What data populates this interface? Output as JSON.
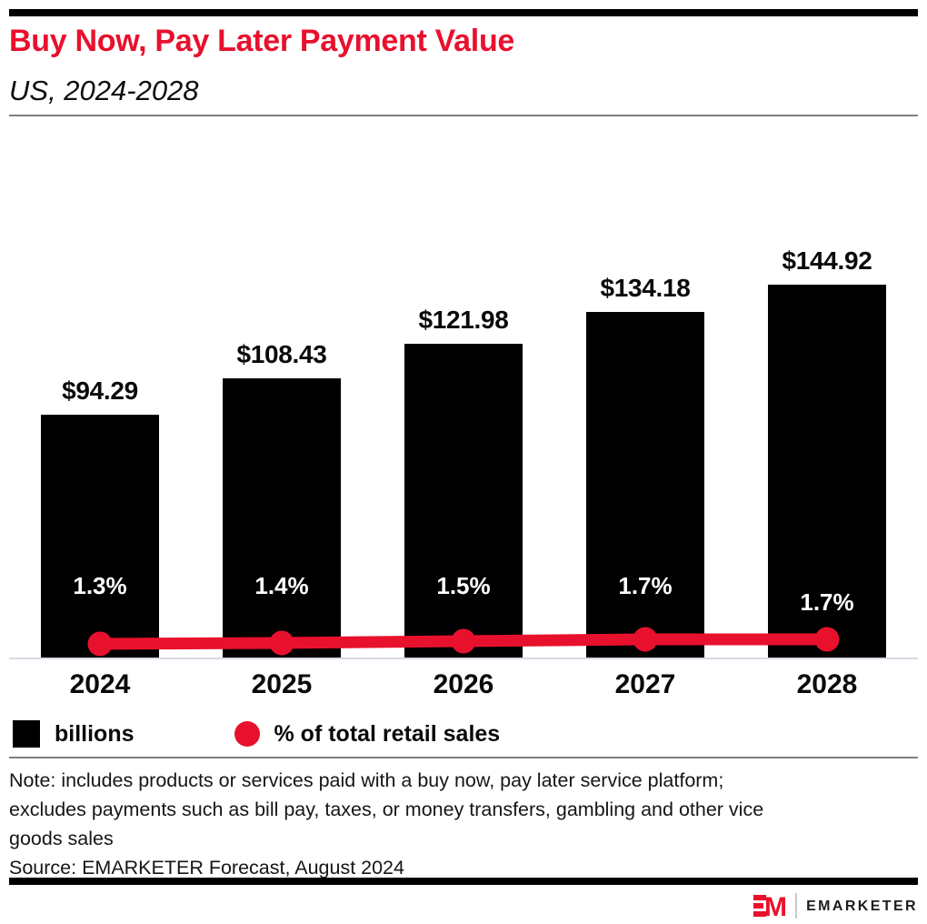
{
  "header": {
    "title": "Buy Now, Pay Later Payment Value",
    "subtitle": "US, 2024-2028"
  },
  "chart_data": {
    "type": "bar",
    "title": "Buy Now, Pay Later Payment Value",
    "subtitle": "US, 2024-2028",
    "categories": [
      "2024",
      "2025",
      "2026",
      "2027",
      "2028"
    ],
    "series": [
      {
        "name": "billions",
        "type": "bar",
        "unit": "US$ billions",
        "values": [
          94.29,
          108.43,
          121.98,
          134.18,
          144.92
        ],
        "labels": [
          "$94.29",
          "$108.43",
          "$121.98",
          "$134.18",
          "$144.92"
        ],
        "color": "#000000"
      },
      {
        "name": "% of total retail sales",
        "type": "line",
        "unit": "percent",
        "values": [
          1.3,
          1.4,
          1.5,
          1.7,
          1.7
        ],
        "labels": [
          "1.3%",
          "1.4%",
          "1.5%",
          "1.7%",
          "1.7%"
        ],
        "color": "#e8112d"
      }
    ],
    "xlabel": "",
    "ylabel": "",
    "grid": false,
    "legend_position": "bottom"
  },
  "legend": {
    "items": [
      {
        "label": "billions",
        "swatch": "square-icon",
        "color": "#000000"
      },
      {
        "label": "% of total retail sales",
        "swatch": "circle-icon",
        "color": "#e8112d"
      }
    ]
  },
  "note": {
    "lines": [
      "Note: includes products or services paid with a buy now, pay later service platform;",
      "excludes payments such as bill pay, taxes, or money transfers, gambling and other vice",
      "goods sales"
    ]
  },
  "source": "Source: EMARKETER Forecast, August 2024",
  "footer": {
    "brand": "EMARKETER",
    "logo_mark": "EM"
  },
  "colors": {
    "accent_red": "#e8112d",
    "bar_black": "#000000",
    "axis_line": "#d5dbe3",
    "rule_gray": "#7f7f7f",
    "text": "#111111",
    "pct_label": "#ffffff"
  }
}
